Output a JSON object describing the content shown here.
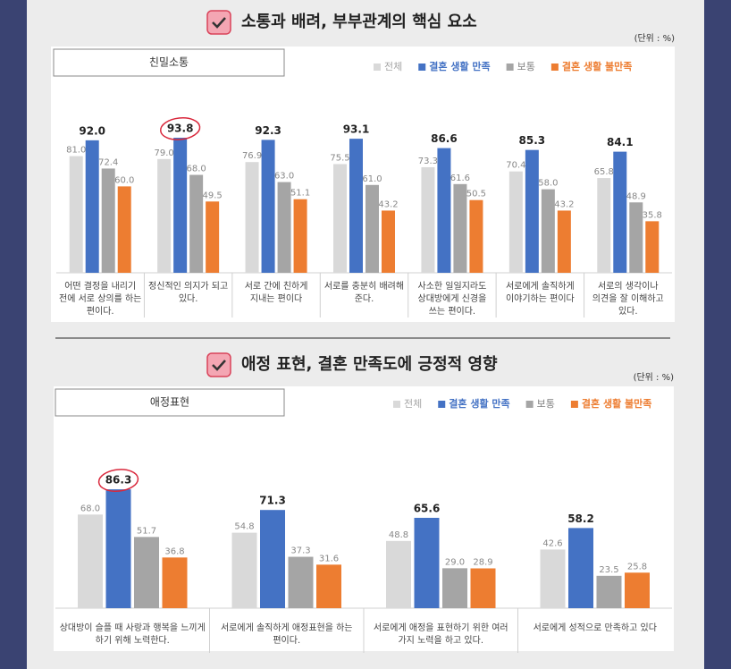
{
  "chart_data": [
    {
      "type": "bar",
      "title": "소통과 배려, 부부관계의 핵심 요소",
      "unit_note": "(단위 : %)",
      "subtitle": "친밀소통",
      "highlight": {
        "series": 1,
        "index": 1
      },
      "categories": [
        [
          "어떤 결정을 내리기",
          "전에 서로 상의를 하는",
          "편이다."
        ],
        [
          "정신적인 의지가 되고",
          "있다."
        ],
        [
          "서로 간에 친하게",
          "지내는 편이다"
        ],
        [
          "서로를 충분히 배려해",
          "준다."
        ],
        [
          "사소한 일일지라도",
          "상대방에게 신경을",
          "쓰는 편이다."
        ],
        [
          "서로에게 솔직하게",
          "이야기하는 편이다"
        ],
        [
          "서로의 생각이나",
          "의견을 잘 이해하고",
          "있다."
        ]
      ],
      "series": [
        {
          "name": "전체",
          "color": "#d9d9d9",
          "label_color": "#a6a6a6",
          "values": [
            81.0,
            79.0,
            76.9,
            75.5,
            73.3,
            70.4,
            65.8
          ],
          "value_labels": [
            "81.0",
            "79.0",
            "76.9",
            "75.5",
            "73.3",
            "70.4",
            "65.8"
          ]
        },
        {
          "name": "결혼 생활 만족",
          "color": "#4472c4",
          "label_color": "#4472c4",
          "values": [
            92.0,
            93.8,
            92.3,
            93.1,
            86.6,
            85.3,
            84.1
          ],
          "value_labels": [
            "92.0",
            "93.8",
            "92.3",
            "93.1",
            "86.6",
            "85.3",
            "84.1"
          ]
        },
        {
          "name": "보통",
          "color": "#a5a5a5",
          "label_color": "#808080",
          "values": [
            72.4,
            68.0,
            63.0,
            61.0,
            61.6,
            58.0,
            48.9
          ],
          "value_labels": [
            "72.4",
            "68.0",
            "63.0",
            "61.0",
            "61.6",
            "58.0",
            "48.9"
          ]
        },
        {
          "name": "결혼 생활 불만족",
          "color": "#ed7d31",
          "label_color": "#ed7d31",
          "values": [
            60.0,
            49.5,
            51.1,
            43.2,
            50.5,
            43.2,
            35.8
          ],
          "value_labels": [
            "60.0",
            "49.5",
            "51.1",
            "43.2",
            "50.5",
            "43.2",
            "35.8"
          ]
        }
      ]
    },
    {
      "type": "bar",
      "title": "애정 표현, 결혼 만족도에 긍정적 영향",
      "unit_note": "(단위 : %)",
      "subtitle": "애정표현",
      "highlight": {
        "series": 1,
        "index": 0
      },
      "categories": [
        [
          "상대방이 슬플 때 사랑과 행복을 느끼게",
          "하기 위해 노력한다."
        ],
        [
          "서로에게 솔직하게 애정표현을 하는",
          "편이다."
        ],
        [
          "서로에게 애정을 표현하기 위한 여러",
          "가지 노력을 하고 있다."
        ],
        [
          "서로에게 성적으로 만족하고 있다"
        ]
      ],
      "series": [
        {
          "name": "전체",
          "color": "#d9d9d9",
          "label_color": "#a6a6a6",
          "values": [
            68.0,
            54.8,
            48.8,
            42.6
          ],
          "value_labels": [
            "68.0",
            "54.8",
            "48.8",
            "42.6"
          ]
        },
        {
          "name": "결혼 생활 만족",
          "color": "#4472c4",
          "label_color": "#4472c4",
          "values": [
            86.3,
            71.3,
            65.6,
            58.2
          ],
          "value_labels": [
            "86.3",
            "71.3",
            "65.6",
            "58.2"
          ]
        },
        {
          "name": "보통",
          "color": "#a5a5a5",
          "label_color": "#808080",
          "values": [
            51.7,
            37.3,
            29.0,
            23.5
          ],
          "value_labels": [
            "51.7",
            "37.3",
            "29.0",
            "23.5"
          ]
        },
        {
          "name": "결혼 생활 불만족",
          "color": "#ed7d31",
          "label_color": "#ed7d31",
          "values": [
            36.8,
            31.6,
            28.9,
            25.8
          ],
          "value_labels": [
            "36.8",
            "31.6",
            "28.9",
            "25.8"
          ]
        }
      ]
    }
  ]
}
